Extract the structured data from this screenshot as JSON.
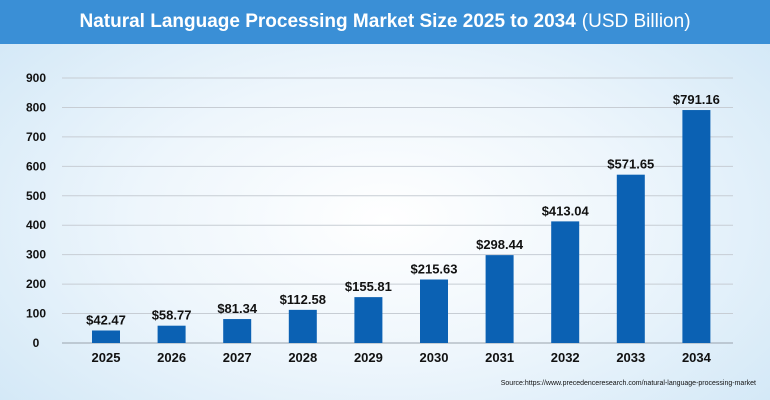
{
  "header": {
    "title": "Natural Language Processing Market Size 2025 to 2034",
    "unit": "(USD Billion)"
  },
  "source": "Source:https://www.precedenceresearch.com/natural-language-processing-market",
  "colors": {
    "bar": "#0b61b3",
    "title_bar": "#3a8fd6",
    "grid": "#c7cdd4"
  },
  "chart_data": {
    "type": "bar",
    "categories": [
      "2025",
      "2026",
      "2027",
      "2028",
      "2029",
      "2030",
      "2031",
      "2032",
      "2033",
      "2034"
    ],
    "values": [
      42.47,
      58.77,
      81.34,
      112.58,
      155.81,
      215.63,
      298.44,
      413.04,
      571.65,
      791.16
    ],
    "value_labels": [
      "$42.47",
      "$58.77",
      "$81.34",
      "$112.58",
      "$155.81",
      "$215.63",
      "$298.44",
      "$413.04",
      "$571.65",
      "$791.16"
    ],
    "yticks": [
      0,
      100,
      200,
      300,
      400,
      500,
      600,
      700,
      800,
      900
    ],
    "ylim": [
      0,
      900
    ],
    "grid": true
  }
}
